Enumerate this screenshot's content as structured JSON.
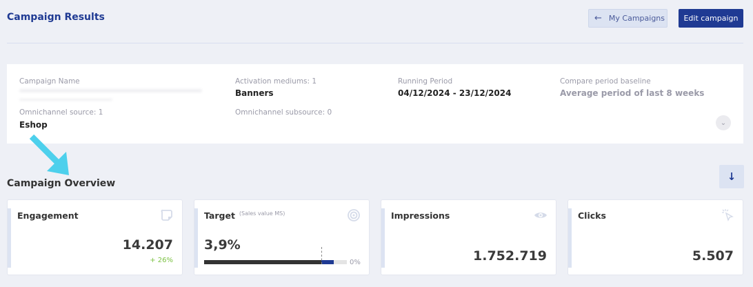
{
  "header": {
    "title": "Campaign Results",
    "back_label": "My Campaigns",
    "edit_label": "Edit campaign"
  },
  "info": {
    "campaign_name_label": "Campaign Name",
    "activation_label": "Activation mediums: 1",
    "activation_value": "Banners",
    "period_label": "Running Period",
    "period_value": "04/12/2024 - 23/12/2024",
    "baseline_label": "Compare period baseline",
    "baseline_value": "Average period of last 8 weeks",
    "source_label": "Omnichannel source: 1",
    "source_value": "Eshop",
    "subsource_label": "Omnichannel subsource: 0"
  },
  "overview": {
    "title": "Campaign Overview",
    "cards": [
      {
        "title": "Engagement",
        "value": "14.207",
        "change": "+ 26%",
        "icon": "sticky-note-icon"
      },
      {
        "title": "Target",
        "subtitle": "(Sales value MS)",
        "value": "3,9%",
        "bar_end_label": "0%",
        "progress_dark": 0.82,
        "progress_blue": 0.91,
        "icon": "target-icon"
      },
      {
        "title": "Impressions",
        "value": "1.752.719",
        "icon": "eye-icon"
      },
      {
        "title": "Clicks",
        "value": "5.507",
        "icon": "click-pointer-icon"
      }
    ]
  },
  "colors": {
    "brand": "#1f3a93",
    "positive": "#7cc243",
    "arrow": "#4dd0ec"
  }
}
